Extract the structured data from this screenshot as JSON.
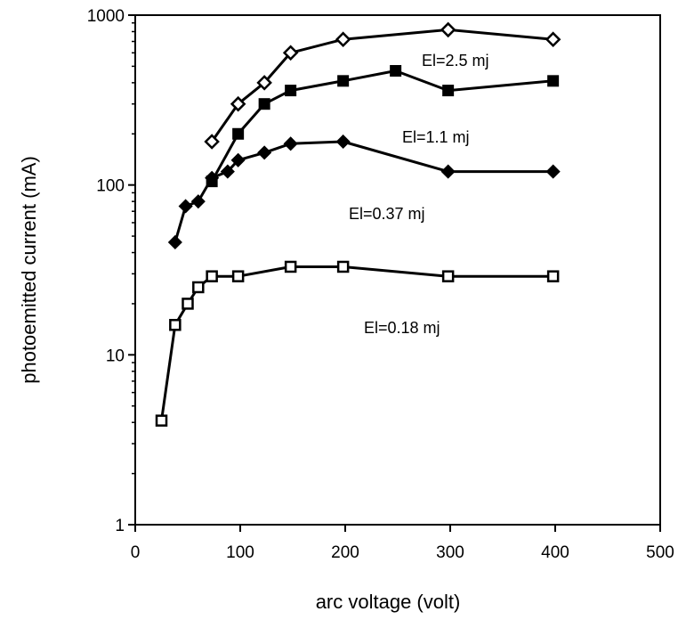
{
  "chart_data": {
    "type": "line",
    "title": "",
    "xlabel": "arc voltage (volt)",
    "ylabel": "photoemitted current (mA)",
    "xlim": [
      0,
      500
    ],
    "ylim": [
      1,
      1000
    ],
    "y_scale": "log",
    "x_ticks": [
      0,
      100,
      200,
      300,
      400,
      500
    ],
    "x_tick_labels": [
      "0",
      "100",
      "200",
      "300",
      "400",
      "500"
    ],
    "y_ticks": [
      1,
      10,
      100,
      1000
    ],
    "y_tick_labels": [
      "1",
      "10",
      "100",
      "1000"
    ],
    "grid": false,
    "legend": "none",
    "series": [
      {
        "name": "El=2.5 mj",
        "marker": "diamond-open",
        "x": [
          73,
          98,
          123,
          148,
          198,
          298,
          398
        ],
        "y": [
          180,
          300,
          400,
          600,
          720,
          820,
          720
        ]
      },
      {
        "name": "El=1.1 mj",
        "marker": "square-filled",
        "x": [
          73,
          98,
          123,
          148,
          198,
          248,
          298,
          398
        ],
        "y": [
          105,
          200,
          300,
          360,
          410,
          470,
          360,
          410
        ]
      },
      {
        "name": "El=0.37 mj",
        "marker": "diamond-filled",
        "x": [
          38,
          48,
          60,
          73,
          88,
          98,
          123,
          148,
          198,
          298,
          398
        ],
        "y": [
          46,
          75,
          80,
          110,
          120,
          140,
          155,
          175,
          180,
          120,
          120
        ]
      },
      {
        "name": "El=0.18 mj",
        "marker": "square-open",
        "x": [
          25,
          38,
          50,
          60,
          73,
          98,
          148,
          198,
          298,
          398
        ],
        "y": [
          4.1,
          15,
          20,
          25,
          29,
          29,
          33,
          33,
          29,
          29
        ]
      }
    ]
  }
}
